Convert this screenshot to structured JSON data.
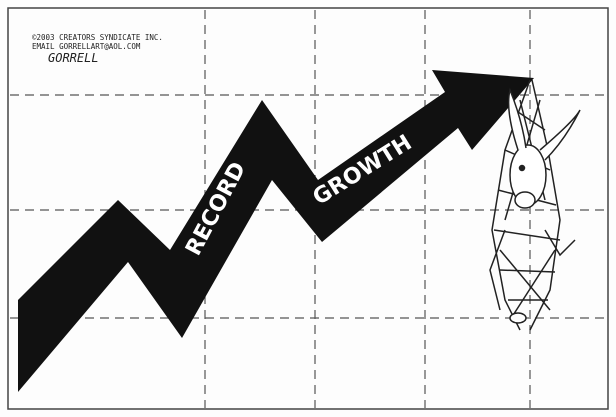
{
  "credit": {
    "line1": "©2003 CREATORS SYNDICATE INC.",
    "line2": "EMAIL GORRELLART@AOL.COM",
    "signature": "GORRELL"
  },
  "arrow": {
    "word1": "RECORD",
    "word2": "GROWTH"
  }
}
